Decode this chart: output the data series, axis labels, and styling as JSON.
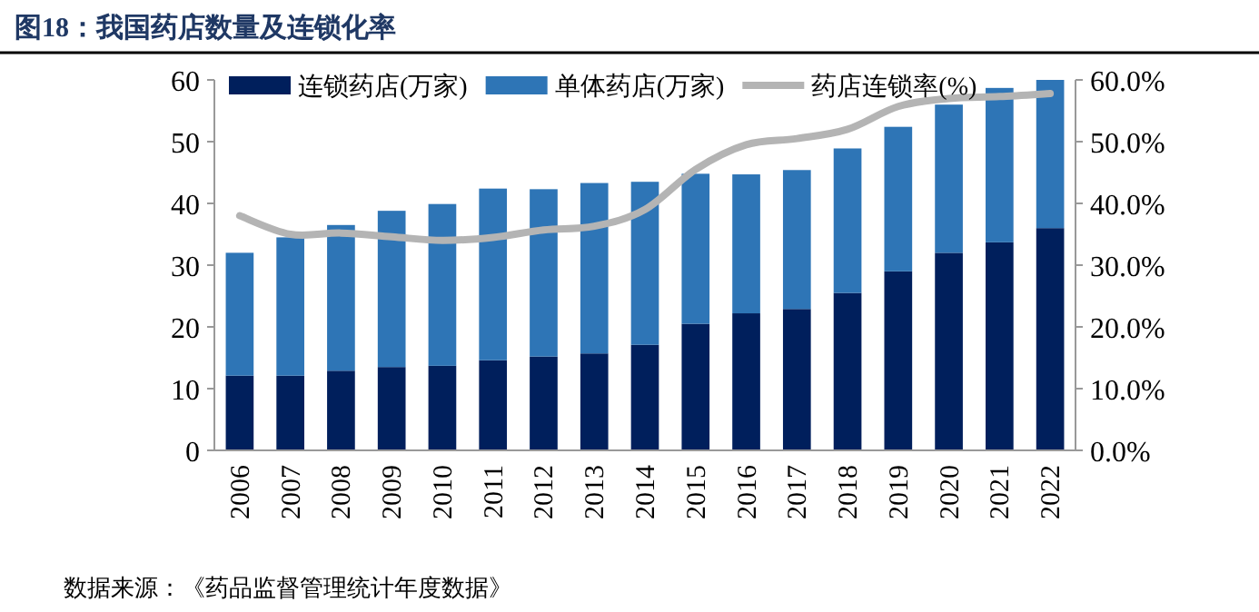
{
  "chart_data": {
    "type": "bar",
    "title": "图18：我国药店数量及连锁化率",
    "categories": [
      "2006",
      "2007",
      "2008",
      "2009",
      "2010",
      "2011",
      "2012",
      "2013",
      "2014",
      "2015",
      "2016",
      "2017",
      "2018",
      "2019",
      "2020",
      "2021",
      "2022"
    ],
    "stacked": true,
    "series": [
      {
        "name": "连锁药店(万家)",
        "color": "#001f5c",
        "values": [
          12.1,
          12.1,
          12.9,
          13.5,
          13.7,
          14.6,
          15.2,
          15.7,
          17.1,
          20.5,
          22.2,
          22.9,
          25.5,
          29.0,
          32.0,
          33.7,
          36.0
        ]
      },
      {
        "name": "单体药店(万家)",
        "color": "#2e75b6",
        "values": [
          19.9,
          22.4,
          23.6,
          25.3,
          26.2,
          27.8,
          27.1,
          27.6,
          26.4,
          24.3,
          22.5,
          22.5,
          23.4,
          23.4,
          24.0,
          25.0,
          24.0
        ]
      },
      {
        "name": "药店连锁率(%)",
        "type": "line",
        "axis": "y2",
        "color": "#b4b4b4",
        "values": [
          38.0,
          35.0,
          35.2,
          34.6,
          34.0,
          34.5,
          35.7,
          36.3,
          39.0,
          45.5,
          49.5,
          50.5,
          52.0,
          55.7,
          57.0,
          57.3,
          57.8
        ]
      }
    ],
    "ylim": [
      0,
      60
    ],
    "yticks": [
      0,
      10,
      20,
      30,
      40,
      50,
      60
    ],
    "y2lim": [
      0,
      60
    ],
    "y2ticks": [
      {
        "value": 0,
        "label": "0.0%"
      },
      {
        "value": 10,
        "label": "10.0%"
      },
      {
        "value": 20,
        "label": "20.0%"
      },
      {
        "value": 30,
        "label": "30.0%"
      },
      {
        "value": 40,
        "label": "40.0%"
      },
      {
        "value": 50,
        "label": "50.0%"
      },
      {
        "value": 60,
        "label": "60.0%"
      }
    ],
    "legend": "top",
    "annotations": [
      "数据来源：《药品监督管理统计年度数据》"
    ]
  }
}
